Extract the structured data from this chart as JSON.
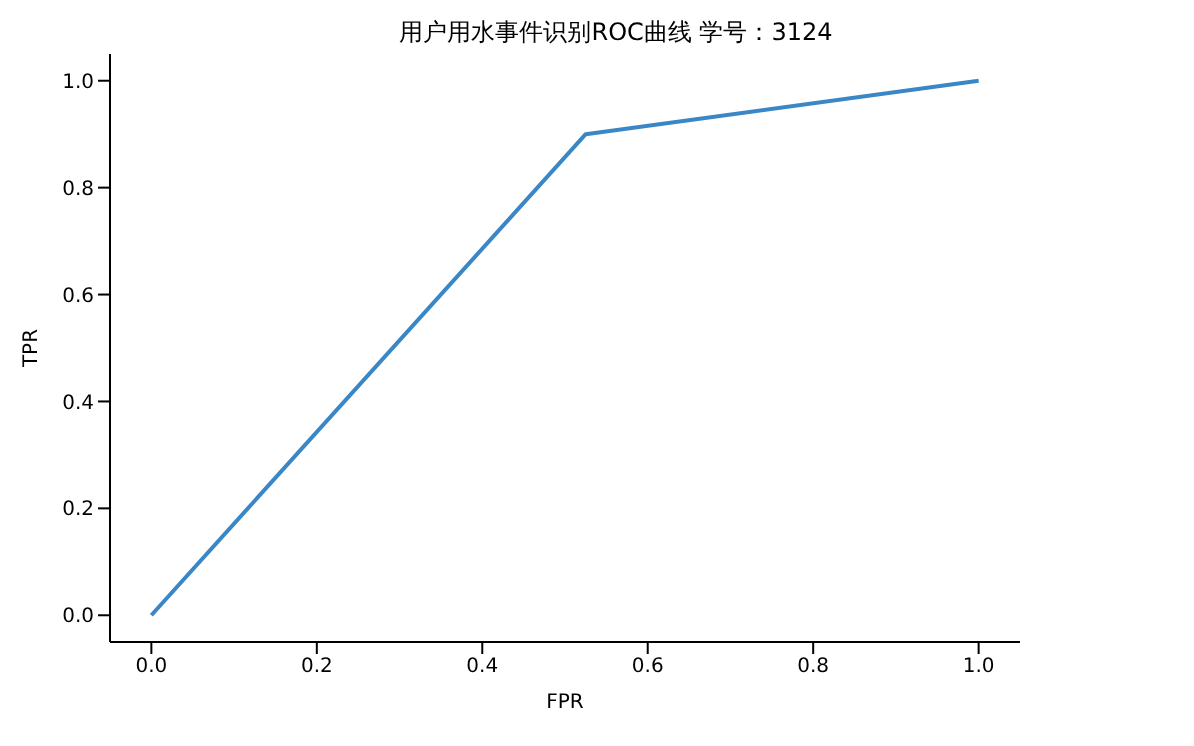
{
  "chart_data": {
    "type": "line",
    "title": "用户用水事件识别ROC曲线 学号：3124",
    "xlabel": "FPR",
    "ylabel": "TPR",
    "x": [
      0,
      0.525,
      1
    ],
    "series": [
      {
        "color": "#3a87c7",
        "values": [
          0,
          0.9,
          1
        ]
      }
    ],
    "xlim": [
      -0.05,
      1.05
    ],
    "ylim": [
      -0.05,
      1.05
    ],
    "xticks": [
      {
        "value": 0,
        "label": "0.0"
      },
      0.2,
      0.4,
      0.6,
      0.8,
      {
        "value": 1,
        "label": "1.0"
      }
    ],
    "yticks": [
      {
        "value": 0,
        "label": "0.0"
      },
      0.2,
      0.4,
      0.6,
      0.8,
      {
        "value": 1,
        "label": "1.0"
      }
    ]
  }
}
